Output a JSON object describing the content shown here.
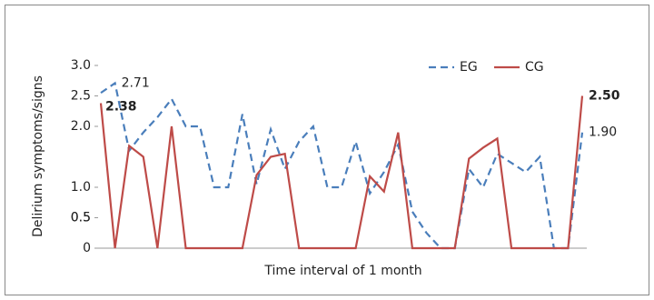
{
  "chart_data": {
    "type": "line",
    "ylabel": "Delirium symptoms/signs",
    "xlabel": "Time interval of 1 month",
    "categories": [
      null,
      null,
      null,
      null,
      null,
      null,
      null,
      null,
      null,
      null,
      null,
      null,
      null,
      null,
      null,
      null,
      null,
      null,
      null,
      null,
      null,
      null,
      null,
      null,
      null,
      null,
      null,
      null,
      null,
      null,
      null,
      null,
      null,
      null,
      null
    ],
    "series": [
      {
        "name": "EG",
        "color": "#4a7ebb",
        "dash": true,
        "values": [
          2.55,
          2.71,
          1.6,
          1.9,
          2.15,
          2.45,
          2.0,
          2.0,
          1.0,
          1.0,
          2.2,
          1.05,
          1.95,
          1.3,
          1.75,
          2.0,
          1.0,
          1.0,
          1.75,
          0.9,
          1.25,
          1.7,
          0.6,
          0.25,
          0,
          0,
          1.3,
          1.0,
          1.55,
          1.4,
          1.25,
          1.5,
          0,
          0,
          1.9
        ],
        "value_labels": [
          null,
          "2.71",
          null,
          null,
          null,
          null,
          null,
          null,
          null,
          null,
          null,
          null,
          null,
          null,
          null,
          null,
          null,
          null,
          null,
          null,
          null,
          null,
          null,
          null,
          null,
          null,
          null,
          null,
          null,
          null,
          null,
          null,
          null,
          null,
          "1.90"
        ]
      },
      {
        "name": "CG",
        "color": "#be4b48",
        "dash": false,
        "values": [
          2.38,
          0,
          1.68,
          1.5,
          0,
          2.0,
          0,
          0,
          0,
          0,
          0,
          1.2,
          1.5,
          1.55,
          0,
          0,
          0,
          0,
          0,
          1.18,
          0.93,
          1.9,
          0,
          0,
          0,
          0,
          1.47,
          1.65,
          1.8,
          0,
          0,
          0,
          0,
          0,
          2.5
        ],
        "value_labels": [
          "2.38",
          null,
          null,
          null,
          null,
          null,
          null,
          null,
          null,
          null,
          null,
          null,
          null,
          null,
          null,
          null,
          null,
          null,
          null,
          null,
          null,
          null,
          null,
          null,
          null,
          null,
          null,
          null,
          null,
          null,
          null,
          null,
          null,
          null,
          "2.50"
        ]
      }
    ],
    "ylim": [
      0,
      3.0
    ],
    "yticks": [
      0,
      0.5,
      {
        "value": 1.0,
        "label": "1.0"
      },
      0.5,
      {
        "value": 2.0,
        "label": "2.0"
      },
      2.5,
      {
        "value": 3.0,
        "label": "3.0"
      }
    ],
    "grid": false,
    "legend": "top-right"
  }
}
